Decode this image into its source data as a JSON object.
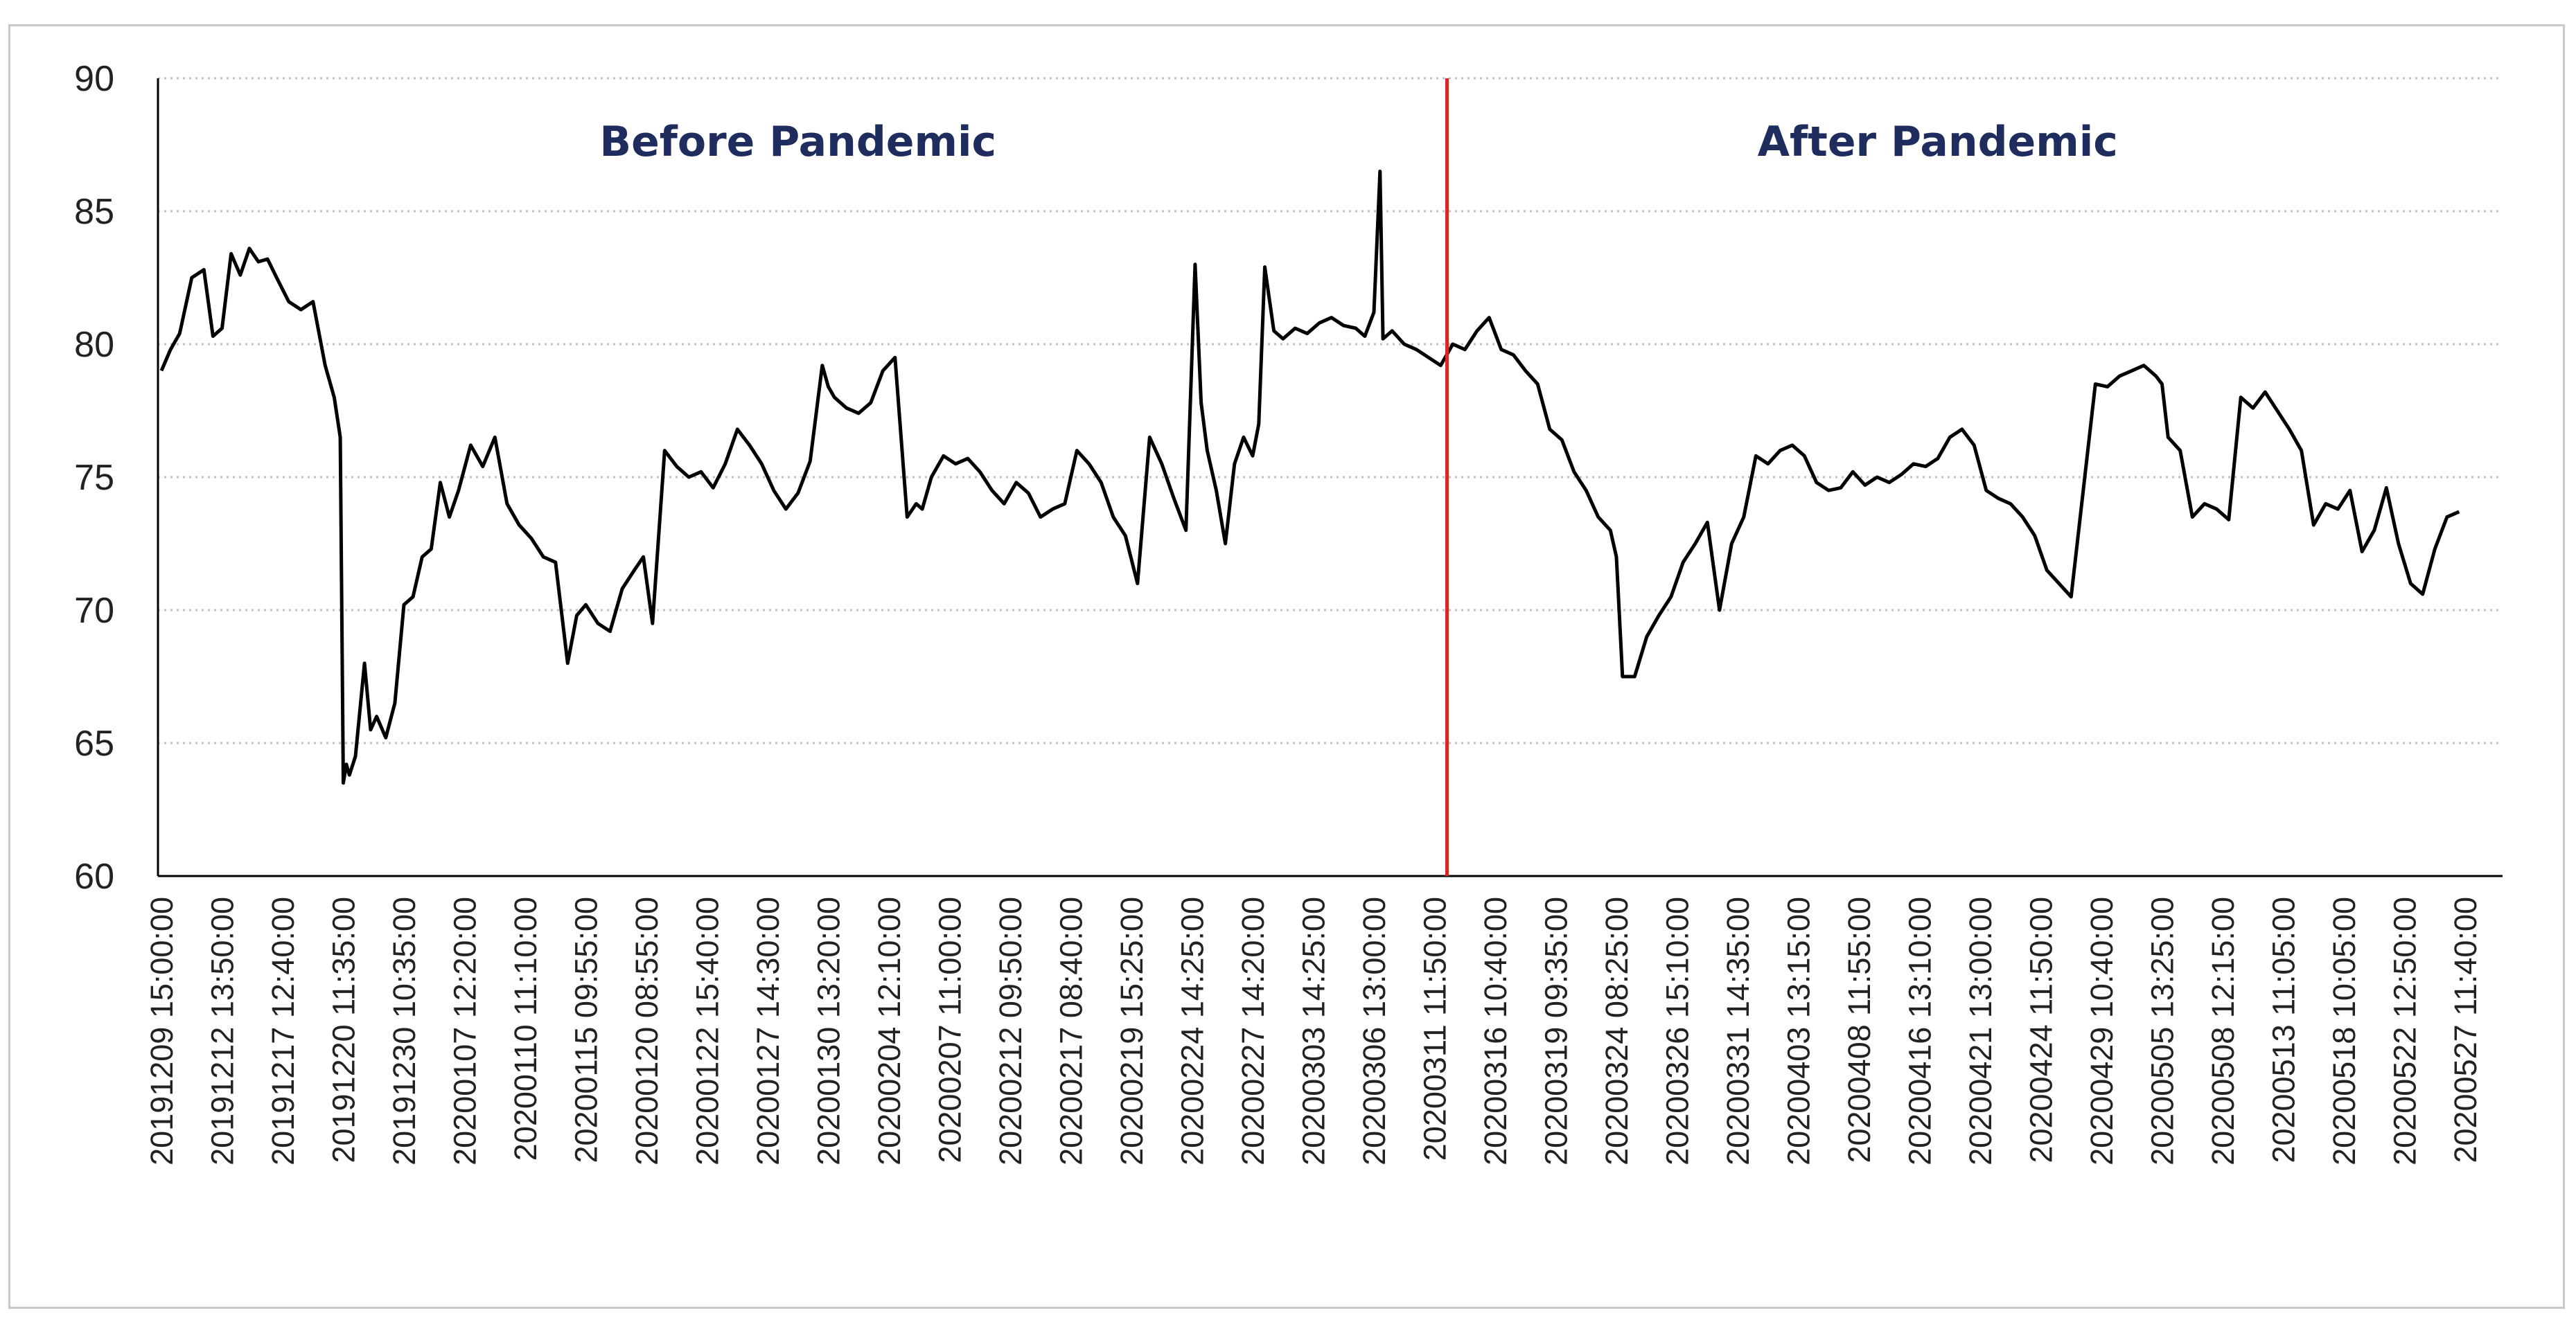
{
  "chart_data": {
    "type": "line",
    "title": "",
    "xlabel": "",
    "ylabel": "",
    "ylim": [
      60,
      90
    ],
    "yticks": [
      60,
      65,
      70,
      75,
      80,
      85,
      90
    ],
    "grid": "horizontal-dotted",
    "legend": "none",
    "colors": {
      "line": "#000000",
      "divider": "#d62728",
      "region_label": "#1f2d5e",
      "grid": "#bfbfbf",
      "axis": "#000000"
    },
    "x_tick_labels": [
      "20191209 15:00:00",
      "20191212 13:50:00",
      "20191217 12:40:00",
      "20191220 11:35:00",
      "20191230 10:35:00",
      "20200107 12:20:00",
      "20200110 11:10:00",
      "20200115 09:55:00",
      "20200120 08:55:00",
      "20200122 15:40:00",
      "20200127 14:30:00",
      "20200130 13:20:00",
      "20200204 12:10:00",
      "20200207 11:00:00",
      "20200212 09:50:00",
      "20200217 08:40:00",
      "20200219 15:25:00",
      "20200224 14:25:00",
      "20200227 14:20:00",
      "20200303 14:25:00",
      "20200306 13:00:00",
      "20200311 11:50:00",
      "20200316 10:40:00",
      "20200319 09:35:00",
      "20200324 08:25:00",
      "20200326 15:10:00",
      "20200331 14:35:00",
      "20200403 13:15:00",
      "20200408 11:55:00",
      "20200416 13:10:00",
      "20200421 13:00:00",
      "20200424 11:50:00",
      "20200429 10:40:00",
      "20200505 13:25:00",
      "20200508 12:15:00",
      "20200513 11:05:00",
      "20200518 10:05:00",
      "20200522 12:50:00",
      "20200527 11:40:00"
    ],
    "divider_at_tick": "20200311 11:50:00",
    "annotations": [
      {
        "text": "Before Pandemic",
        "at_tick": 10.5,
        "y": 87.6
      },
      {
        "text": "After Pandemic",
        "at_tick": 29.3,
        "y": 87.6
      }
    ],
    "series": [
      {
        "x_tick_index": [
          0,
          0.15,
          0.3,
          0.5,
          0.7,
          0.85,
          1.0,
          1.15,
          1.3,
          1.45,
          1.6,
          1.75,
          1.9,
          2.1,
          2.3,
          2.5,
          2.7,
          2.85,
          2.95,
          3.0,
          3.05,
          3.1,
          3.2,
          3.35,
          3.45,
          3.55,
          3.7,
          3.85,
          4.0,
          4.15,
          4.3,
          4.45,
          4.6,
          4.75,
          4.9,
          5.1,
          5.3,
          5.5,
          5.7,
          5.9,
          6.1,
          6.3,
          6.5,
          6.7,
          6.85,
          7.0,
          7.2,
          7.4,
          7.6,
          7.8,
          7.95,
          8.1,
          8.3,
          8.5,
          8.7,
          8.9,
          9.1,
          9.3,
          9.5,
          9.7,
          9.9,
          10.1,
          10.3,
          10.5,
          10.7,
          10.9,
          11.0,
          11.1,
          11.3,
          11.5,
          11.7,
          11.9,
          12.1,
          12.3,
          12.45,
          12.55,
          12.7,
          12.9,
          13.1,
          13.3,
          13.5,
          13.7,
          13.9,
          14.1,
          14.3,
          14.5,
          14.7,
          14.9,
          15.1,
          15.3,
          15.5,
          15.7,
          15.9,
          16.1,
          16.3,
          16.5,
          16.7,
          16.9,
          17.05,
          17.15,
          17.25,
          17.4,
          17.55,
          17.7,
          17.85,
          18.0,
          18.1,
          18.2,
          18.35,
          18.5,
          18.7,
          18.9,
          19.1,
          19.3,
          19.5,
          19.7,
          19.85,
          20.0,
          20.1,
          20.15,
          20.3,
          20.5,
          20.7,
          20.9,
          21.1,
          21.3,
          21.5,
          21.7,
          21.9,
          22.1,
          22.3,
          22.5,
          22.7,
          22.9,
          23.1,
          23.3,
          23.5,
          23.7,
          23.9,
          24.0,
          24.1,
          24.3,
          24.5,
          24.7,
          24.9,
          25.1,
          25.3,
          25.5,
          25.7,
          25.9,
          26.1,
          26.3,
          26.5,
          26.7,
          26.9,
          27.1,
          27.3,
          27.5,
          27.7,
          27.9,
          28.1,
          28.3,
          28.5,
          28.7,
          28.9,
          29.1,
          29.3,
          29.5,
          29.7,
          29.9,
          30.1,
          30.3,
          30.5,
          30.7,
          30.9,
          31.1,
          31.3,
          31.5,
          31.7,
          31.9,
          32.1,
          32.3,
          32.5,
          32.7,
          32.9,
          33.0,
          33.1,
          33.3,
          33.5,
          33.7,
          33.9,
          34.1,
          34.3,
          34.5,
          34.7,
          34.9,
          35.1,
          35.3,
          35.5,
          35.7,
          35.9,
          36.1,
          36.3,
          36.5,
          36.7,
          36.9,
          37.1,
          37.3,
          37.5,
          37.7,
          37.9,
          38.1,
          38.3,
          38.5,
          38.65,
          38.8
        ],
        "values": [
          79,
          79.8,
          80.4,
          82.5,
          82.8,
          80.3,
          80.6,
          83.4,
          82.6,
          83.6,
          83.1,
          83.2,
          82.5,
          81.6,
          81.3,
          81.6,
          79.2,
          78.0,
          76.5,
          63.5,
          64.2,
          63.8,
          64.5,
          68.0,
          65.5,
          66.0,
          65.2,
          66.5,
          70.2,
          70.5,
          72.0,
          72.3,
          74.8,
          73.5,
          74.5,
          76.2,
          75.4,
          76.5,
          74.0,
          73.2,
          72.7,
          72.0,
          71.8,
          68.0,
          69.8,
          70.2,
          69.5,
          69.2,
          70.8,
          71.5,
          72.0,
          69.5,
          76.0,
          75.4,
          75.0,
          75.2,
          74.6,
          75.5,
          76.8,
          76.2,
          75.5,
          74.5,
          73.8,
          74.4,
          75.6,
          79.2,
          78.4,
          78.0,
          77.6,
          77.4,
          77.8,
          79.0,
          79.5,
          73.5,
          74.0,
          73.8,
          75.0,
          75.8,
          75.5,
          75.7,
          75.2,
          74.5,
          74.0,
          74.8,
          74.4,
          73.5,
          73.8,
          74.0,
          76.0,
          75.5,
          74.8,
          73.5,
          72.8,
          71.0,
          76.5,
          75.5,
          74.2,
          73.0,
          83.0,
          77.8,
          76.0,
          74.5,
          72.5,
          75.5,
          76.5,
          75.8,
          77.0,
          82.9,
          80.5,
          80.2,
          80.6,
          80.4,
          80.8,
          81.0,
          80.7,
          80.6,
          80.3,
          81.2,
          86.5,
          80.2,
          80.5,
          80.0,
          79.8,
          79.5,
          79.2,
          80.0,
          79.8,
          80.5,
          81.0,
          79.8,
          79.6,
          79.0,
          78.5,
          76.8,
          76.4,
          75.2,
          74.5,
          73.5,
          73.0,
          72.0,
          67.5,
          67.5,
          69.0,
          69.8,
          70.5,
          71.8,
          72.5,
          73.3,
          70.0,
          72.5,
          73.5,
          75.8,
          75.5,
          76.0,
          76.2,
          75.8,
          74.8,
          74.5,
          74.6,
          75.2,
          74.7,
          75.0,
          74.8,
          75.1,
          75.5,
          75.4,
          75.7,
          76.5,
          76.8,
          76.2,
          74.5,
          74.2,
          74.0,
          73.5,
          72.8,
          71.5,
          71.0,
          70.5,
          74.5,
          78.5,
          78.4,
          78.8,
          79.0,
          79.2,
          78.8,
          78.5,
          76.5,
          76.0,
          73.5,
          74.0,
          73.8,
          73.4,
          78.0,
          77.6,
          78.2,
          77.5,
          76.8,
          76.0,
          73.2,
          74.0,
          73.8,
          74.5,
          72.2,
          73.0,
          74.6,
          72.5,
          71.0,
          70.6,
          72.3,
          73.5,
          73.7
        ]
      }
    ]
  }
}
